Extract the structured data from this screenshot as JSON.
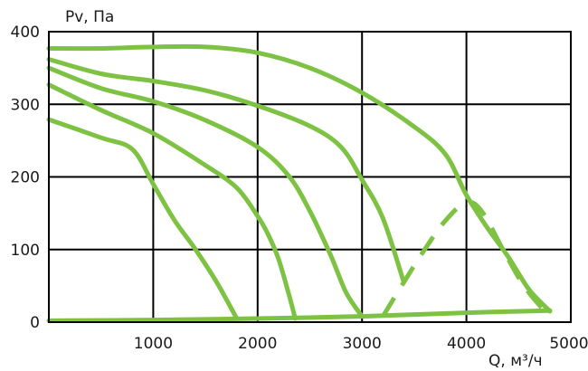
{
  "chart_data": {
    "type": "line",
    "ylabel": "Pv, Па",
    "xlabel": "Q, м³/ч",
    "xlim": [
      0,
      5000
    ],
    "ylim": [
      0,
      400
    ],
    "x_ticks": [
      {
        "value": 1000,
        "label": "1000"
      },
      {
        "value": 2000,
        "label": "2000"
      },
      {
        "value": 3000,
        "label": "3000"
      },
      {
        "value": 4000,
        "label": "4000"
      },
      {
        "value": 5000,
        "label": "5000"
      }
    ],
    "y_ticks": [
      {
        "value": 0,
        "label": "0"
      },
      {
        "value": 100,
        "label": "100"
      },
      {
        "value": 200,
        "label": "200"
      },
      {
        "value": 300,
        "label": "300"
      },
      {
        "value": 400,
        "label": "400"
      }
    ],
    "grid": true,
    "color": "#7dc242",
    "series": [
      {
        "style": "solid",
        "points": [
          [
            0,
            377
          ],
          [
            500,
            377
          ],
          [
            1000,
            379
          ],
          [
            1500,
            379
          ],
          [
            2000,
            371
          ],
          [
            2500,
            350
          ],
          [
            3000,
            316
          ],
          [
            3500,
            269
          ],
          [
            3800,
            231
          ],
          [
            4000,
            175
          ],
          [
            4200,
            130
          ],
          [
            4400,
            90
          ],
          [
            4600,
            45
          ],
          [
            4800,
            15
          ]
        ]
      },
      {
        "style": "solid",
        "points": [
          [
            0,
            362
          ],
          [
            500,
            342
          ],
          [
            1000,
            332
          ],
          [
            1500,
            319
          ],
          [
            2000,
            298
          ],
          [
            2500,
            270
          ],
          [
            2800,
            241
          ],
          [
            3000,
            196
          ],
          [
            3200,
            143
          ],
          [
            3400,
            55
          ]
        ]
      },
      {
        "style": "solid",
        "points": [
          [
            0,
            350
          ],
          [
            500,
            322
          ],
          [
            1000,
            304
          ],
          [
            1500,
            278
          ],
          [
            2000,
            241
          ],
          [
            2300,
            201
          ],
          [
            2500,
            153
          ],
          [
            2700,
            92
          ],
          [
            2850,
            40
          ],
          [
            3000,
            8
          ]
        ]
      },
      {
        "style": "solid",
        "points": [
          [
            0,
            327
          ],
          [
            500,
            292
          ],
          [
            1000,
            260
          ],
          [
            1500,
            216
          ],
          [
            1800,
            185
          ],
          [
            2000,
            146
          ],
          [
            2100,
            121
          ],
          [
            2200,
            87
          ],
          [
            2300,
            38
          ],
          [
            2360,
            5
          ]
        ]
      },
      {
        "style": "solid",
        "points": [
          [
            0,
            279
          ],
          [
            500,
            254
          ],
          [
            800,
            238
          ],
          [
            1000,
            190
          ],
          [
            1200,
            141
          ],
          [
            1400,
            101
          ],
          [
            1600,
            57
          ],
          [
            1800,
            5
          ]
        ]
      },
      {
        "style": "solid",
        "points": [
          [
            0,
            2
          ],
          [
            1000,
            3
          ],
          [
            2000,
            5
          ],
          [
            3000,
            8
          ],
          [
            4000,
            13
          ],
          [
            4800,
            16
          ]
        ]
      },
      {
        "style": "dashed",
        "points": [
          [
            3200,
            8
          ],
          [
            3400,
            55
          ],
          [
            3600,
            100
          ],
          [
            3800,
            140
          ],
          [
            4000,
            165
          ],
          [
            4150,
            152
          ],
          [
            4350,
            100
          ],
          [
            4550,
            50
          ],
          [
            4750,
            15
          ]
        ]
      }
    ]
  }
}
